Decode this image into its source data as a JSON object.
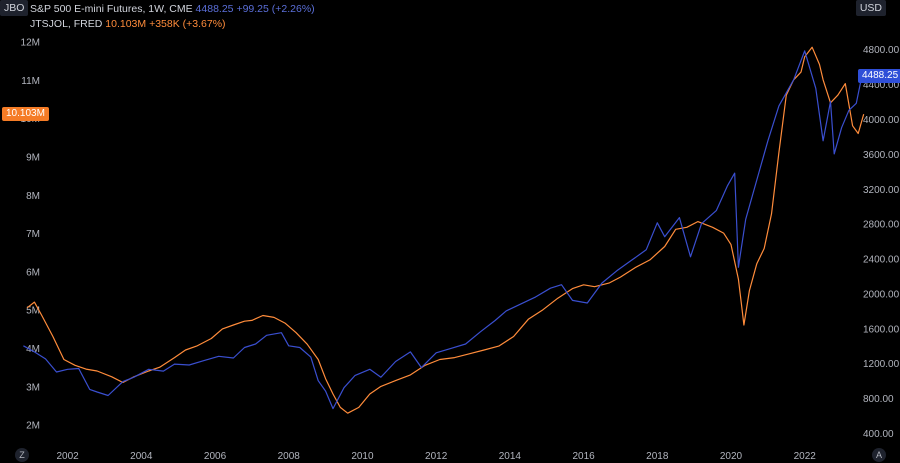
{
  "header": {
    "left_scale_label": "JBO",
    "right_scale_label": "USD"
  },
  "legend": {
    "sp": {
      "name": "S&P 500 E-mini Futures, 1W, CME",
      "value": "4488.25",
      "change": "+99.25 (+2.26%)"
    },
    "jts": {
      "name": "JTSJOL, FRED",
      "value": "10.103M",
      "change": "+358K (+3.67%)"
    }
  },
  "tags": {
    "left": "10.103M",
    "right": "4488.25"
  },
  "buttons": {
    "bottom_left": "Z",
    "bottom_right": "A"
  },
  "colors": {
    "sp_line": "#3a4fd0",
    "jts_line": "#ff8c3b",
    "axis_text": "#b2b5be",
    "background": "#000000"
  },
  "chart_data": {
    "type": "line",
    "x_axis": {
      "ticks": [
        "2002",
        "2004",
        "2006",
        "2008",
        "2010",
        "2012",
        "2014",
        "2016",
        "2018",
        "2020",
        "2022"
      ],
      "range": [
        2000.6,
        2023.5
      ]
    },
    "left_axis": {
      "ticks": [
        "12M",
        "11M",
        "10M",
        "9M",
        "8M",
        "7M",
        "6M",
        "5M",
        "4M",
        "3M",
        "2M"
      ],
      "range_millions": [
        1.6,
        12.3
      ]
    },
    "right_axis": {
      "ticks": [
        "4800.00",
        "4400.00",
        "4000.00",
        "3600.00",
        "3200.00",
        "2800.00",
        "2400.00",
        "2000.00",
        "1600.00",
        "1200.00",
        "800.00",
        "400.00"
      ],
      "range": [
        320,
        5020
      ]
    },
    "series": [
      {
        "name": "JTSJOL, FRED",
        "axis": "left",
        "points": [
          [
            2000.9,
            5.05
          ],
          [
            2001.1,
            5.2
          ],
          [
            2001.3,
            4.85
          ],
          [
            2001.6,
            4.3
          ],
          [
            2001.9,
            3.7
          ],
          [
            2002.2,
            3.55
          ],
          [
            2002.5,
            3.45
          ],
          [
            2002.8,
            3.4
          ],
          [
            2003.2,
            3.25
          ],
          [
            2003.5,
            3.1
          ],
          [
            2003.8,
            3.25
          ],
          [
            2004.2,
            3.4
          ],
          [
            2004.5,
            3.5
          ],
          [
            2004.9,
            3.75
          ],
          [
            2005.2,
            3.95
          ],
          [
            2005.5,
            4.05
          ],
          [
            2005.9,
            4.25
          ],
          [
            2006.2,
            4.5
          ],
          [
            2006.5,
            4.6
          ],
          [
            2006.8,
            4.7
          ],
          [
            2007.0,
            4.72
          ],
          [
            2007.3,
            4.85
          ],
          [
            2007.6,
            4.8
          ],
          [
            2007.9,
            4.65
          ],
          [
            2008.2,
            4.4
          ],
          [
            2008.5,
            4.1
          ],
          [
            2008.8,
            3.7
          ],
          [
            2009.0,
            3.2
          ],
          [
            2009.2,
            2.8
          ],
          [
            2009.4,
            2.45
          ],
          [
            2009.6,
            2.3
          ],
          [
            2009.9,
            2.45
          ],
          [
            2010.2,
            2.8
          ],
          [
            2010.5,
            3.0
          ],
          [
            2010.9,
            3.15
          ],
          [
            2011.3,
            3.3
          ],
          [
            2011.7,
            3.55
          ],
          [
            2012.1,
            3.7
          ],
          [
            2012.5,
            3.75
          ],
          [
            2012.9,
            3.85
          ],
          [
            2013.3,
            3.95
          ],
          [
            2013.7,
            4.05
          ],
          [
            2014.1,
            4.3
          ],
          [
            2014.5,
            4.75
          ],
          [
            2014.9,
            5.0
          ],
          [
            2015.3,
            5.3
          ],
          [
            2015.7,
            5.55
          ],
          [
            2016.0,
            5.65
          ],
          [
            2016.3,
            5.6
          ],
          [
            2016.7,
            5.7
          ],
          [
            2017.0,
            5.85
          ],
          [
            2017.4,
            6.1
          ],
          [
            2017.8,
            6.3
          ],
          [
            2018.2,
            6.65
          ],
          [
            2018.5,
            7.1
          ],
          [
            2018.8,
            7.15
          ],
          [
            2019.1,
            7.3
          ],
          [
            2019.5,
            7.15
          ],
          [
            2019.8,
            7.0
          ],
          [
            2020.0,
            6.7
          ],
          [
            2020.2,
            5.8
          ],
          [
            2020.3,
            5.0
          ],
          [
            2020.35,
            4.6
          ],
          [
            2020.5,
            5.5
          ],
          [
            2020.7,
            6.2
          ],
          [
            2020.9,
            6.6
          ],
          [
            2021.1,
            7.5
          ],
          [
            2021.3,
            9.1
          ],
          [
            2021.5,
            10.6
          ],
          [
            2021.7,
            11.0
          ],
          [
            2021.9,
            11.2
          ],
          [
            2022.0,
            11.6
          ],
          [
            2022.2,
            11.85
          ],
          [
            2022.4,
            11.4
          ],
          [
            2022.5,
            11.0
          ],
          [
            2022.7,
            10.4
          ],
          [
            2022.9,
            10.6
          ],
          [
            2023.1,
            10.9
          ],
          [
            2023.3,
            9.8
          ],
          [
            2023.45,
            9.6
          ],
          [
            2023.6,
            10.103
          ]
        ]
      },
      {
        "name": "S&P 500 E-mini Futures, 1W, CME",
        "axis": "right",
        "points": [
          [
            2000.8,
            1400
          ],
          [
            2001.1,
            1330
          ],
          [
            2001.4,
            1250
          ],
          [
            2001.7,
            1100
          ],
          [
            2002.0,
            1130
          ],
          [
            2002.3,
            1140
          ],
          [
            2002.6,
            900
          ],
          [
            2002.8,
            870
          ],
          [
            2003.1,
            830
          ],
          [
            2003.5,
            990
          ],
          [
            2003.8,
            1040
          ],
          [
            2004.2,
            1130
          ],
          [
            2004.6,
            1110
          ],
          [
            2004.9,
            1190
          ],
          [
            2005.3,
            1180
          ],
          [
            2005.7,
            1230
          ],
          [
            2006.1,
            1280
          ],
          [
            2006.5,
            1260
          ],
          [
            2006.8,
            1380
          ],
          [
            2007.1,
            1420
          ],
          [
            2007.4,
            1520
          ],
          [
            2007.8,
            1550
          ],
          [
            2008.0,
            1400
          ],
          [
            2008.3,
            1380
          ],
          [
            2008.6,
            1270
          ],
          [
            2008.8,
            1000
          ],
          [
            2009.0,
            880
          ],
          [
            2009.2,
            680
          ],
          [
            2009.5,
            920
          ],
          [
            2009.8,
            1060
          ],
          [
            2010.2,
            1130
          ],
          [
            2010.5,
            1040
          ],
          [
            2010.9,
            1220
          ],
          [
            2011.3,
            1330
          ],
          [
            2011.6,
            1150
          ],
          [
            2012.0,
            1320
          ],
          [
            2012.4,
            1370
          ],
          [
            2012.8,
            1420
          ],
          [
            2013.2,
            1560
          ],
          [
            2013.6,
            1690
          ],
          [
            2013.9,
            1800
          ],
          [
            2014.3,
            1880
          ],
          [
            2014.7,
            1960
          ],
          [
            2015.1,
            2060
          ],
          [
            2015.4,
            2100
          ],
          [
            2015.7,
            1920
          ],
          [
            2016.1,
            1890
          ],
          [
            2016.5,
            2120
          ],
          [
            2016.9,
            2260
          ],
          [
            2017.3,
            2380
          ],
          [
            2017.7,
            2500
          ],
          [
            2018.0,
            2810
          ],
          [
            2018.2,
            2650
          ],
          [
            2018.6,
            2870
          ],
          [
            2018.9,
            2420
          ],
          [
            2019.2,
            2800
          ],
          [
            2019.6,
            2950
          ],
          [
            2019.9,
            3230
          ],
          [
            2020.1,
            3380
          ],
          [
            2020.2,
            2300
          ],
          [
            2020.4,
            2850
          ],
          [
            2020.7,
            3300
          ],
          [
            2021.0,
            3750
          ],
          [
            2021.3,
            4150
          ],
          [
            2021.7,
            4450
          ],
          [
            2022.0,
            4780
          ],
          [
            2022.3,
            4350
          ],
          [
            2022.5,
            3750
          ],
          [
            2022.7,
            4200
          ],
          [
            2022.8,
            3600
          ],
          [
            2023.0,
            3900
          ],
          [
            2023.2,
            4100
          ],
          [
            2023.4,
            4180
          ],
          [
            2023.55,
            4488.25
          ]
        ]
      }
    ]
  }
}
